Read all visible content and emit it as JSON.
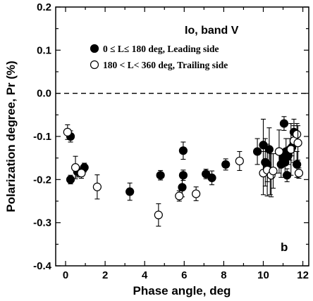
{
  "chart_data": {
    "type": "scatter",
    "title": "",
    "xlabel": "Phase angle, deg",
    "ylabel": "Polarization degree, Pr (%)",
    "xlim": [
      -0.5,
      12.3
    ],
    "ylim": [
      -0.4,
      0.2
    ],
    "xticks": [
      "0",
      "2",
      "4",
      "6",
      "8",
      "10",
      "12"
    ],
    "yticks": [
      "-0.4",
      "-0.3",
      "-0.2",
      "-0.1",
      "0.0",
      "0.1",
      "0.2"
    ],
    "reference_line": {
      "y": 0.0,
      "style": "dashed"
    },
    "legend": {
      "title": "Io, band V",
      "placement": "top-right",
      "entries": [
        {
          "marker": "filled-circle",
          "text": "0 ≤ L≤ 180 deg, Leading side"
        },
        {
          "marker": "open-circle",
          "text": "180 < L< 360 deg, Trailing side"
        }
      ]
    },
    "panel_label": "b",
    "series": [
      {
        "name": "0 ≤ L≤ 180 deg, Leading side",
        "marker": "filled",
        "points": [
          {
            "x": 0.25,
            "y": -0.1,
            "err": 0.013
          },
          {
            "x": 0.25,
            "y": -0.2,
            "err": 0.01
          },
          {
            "x": 0.6,
            "y": -0.182,
            "err": 0.012
          },
          {
            "x": 0.95,
            "y": -0.172,
            "err": 0.01
          },
          {
            "x": 3.25,
            "y": -0.228,
            "err": 0.02
          },
          {
            "x": 4.8,
            "y": -0.19,
            "err": 0.011
          },
          {
            "x": 5.95,
            "y": -0.133,
            "err": 0.02
          },
          {
            "x": 5.95,
            "y": -0.19,
            "err": 0.012
          },
          {
            "x": 5.9,
            "y": -0.218,
            "err": 0.022
          },
          {
            "x": 7.1,
            "y": -0.187,
            "err": 0.011
          },
          {
            "x": 7.4,
            "y": -0.196,
            "err": 0.016
          },
          {
            "x": 8.1,
            "y": -0.165,
            "err": 0.013
          },
          {
            "x": 9.7,
            "y": -0.135,
            "err": 0.03
          },
          {
            "x": 10.0,
            "y": -0.12,
            "err": 0.06
          },
          {
            "x": 10.1,
            "y": -0.16,
            "err": 0.055
          },
          {
            "x": 10.2,
            "y": -0.165,
            "err": 0.04
          },
          {
            "x": 10.3,
            "y": -0.13,
            "err": 0.05
          },
          {
            "x": 10.35,
            "y": -0.185,
            "err": 0.05
          },
          {
            "x": 10.9,
            "y": -0.165,
            "err": 0.03
          },
          {
            "x": 11.0,
            "y": -0.15,
            "err": 0.02
          },
          {
            "x": 11.05,
            "y": -0.07,
            "err": 0.016
          },
          {
            "x": 11.1,
            "y": -0.16,
            "err": 0.03
          },
          {
            "x": 11.15,
            "y": -0.135,
            "err": 0.03
          },
          {
            "x": 11.2,
            "y": -0.19,
            "err": 0.015
          },
          {
            "x": 11.25,
            "y": -0.145,
            "err": 0.02
          },
          {
            "x": 11.35,
            "y": -0.13,
            "err": 0.025
          },
          {
            "x": 11.45,
            "y": -0.125,
            "err": 0.02
          },
          {
            "x": 11.55,
            "y": -0.09,
            "err": 0.015
          },
          {
            "x": 11.7,
            "y": -0.165,
            "err": 0.03
          }
        ]
      },
      {
        "name": "180 < L< 360 deg, Trailing side",
        "marker": "open",
        "points": [
          {
            "x": 0.1,
            "y": -0.09,
            "err": 0.017
          },
          {
            "x": 0.5,
            "y": -0.172,
            "err": 0.026
          },
          {
            "x": 0.8,
            "y": -0.185,
            "err": 0.012
          },
          {
            "x": 1.6,
            "y": -0.217,
            "err": 0.028
          },
          {
            "x": 4.7,
            "y": -0.282,
            "err": 0.026
          },
          {
            "x": 5.75,
            "y": -0.238,
            "err": 0.012
          },
          {
            "x": 6.6,
            "y": -0.233,
            "err": 0.016
          },
          {
            "x": 8.8,
            "y": -0.157,
            "err": 0.022
          },
          {
            "x": 10.0,
            "y": -0.185,
            "err": 0.05
          },
          {
            "x": 10.2,
            "y": -0.178,
            "err": 0.06
          },
          {
            "x": 10.4,
            "y": -0.19,
            "err": 0.05
          },
          {
            "x": 10.5,
            "y": -0.18,
            "err": 0.04
          },
          {
            "x": 10.8,
            "y": -0.135,
            "err": 0.05
          },
          {
            "x": 11.4,
            "y": -0.13,
            "err": 0.06
          },
          {
            "x": 11.55,
            "y": -0.11,
            "err": 0.05
          },
          {
            "x": 11.7,
            "y": -0.095,
            "err": 0.025
          },
          {
            "x": 11.75,
            "y": -0.115,
            "err": 0.04
          },
          {
            "x": 11.8,
            "y": -0.185,
            "err": 0.012
          }
        ]
      }
    ]
  }
}
